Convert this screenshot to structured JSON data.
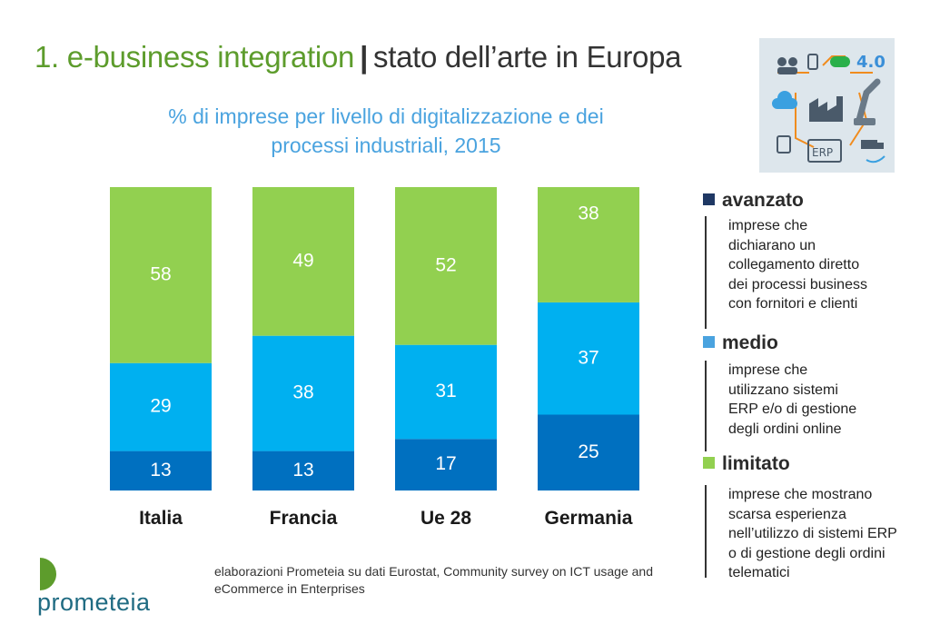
{
  "header": {
    "title_main": "1. e-business integration",
    "title_rest": "stato dell’arte in Europa",
    "subtitle": "% di imprese per livello di digitalizzazione e dei processi industriali, 2015"
  },
  "chart_data": {
    "type": "bar",
    "stacked": true,
    "categories": [
      "Italia",
      "Francia",
      "Ue 28",
      "Germania"
    ],
    "series": [
      {
        "name": "avanzato",
        "color": "#0070c0",
        "values": [
          13,
          13,
          17,
          25
        ]
      },
      {
        "name": "medio",
        "color": "#00b0f0",
        "values": [
          29,
          38,
          31,
          37
        ]
      },
      {
        "name": "limitato",
        "color": "#92d050",
        "values": [
          58,
          49,
          52,
          38
        ]
      }
    ],
    "ylim": [
      0,
      100
    ],
    "grid": false,
    "legend_position": "right",
    "data_labels": true
  },
  "legend": {
    "items": [
      {
        "label": "avanzato",
        "color": "#1f3864",
        "description": [
          "imprese che",
          "dichiarano un",
          "collegamento diretto",
          "dei processi business",
          "con fornitori e clienti"
        ]
      },
      {
        "label": "medio",
        "color": "#4aa3df",
        "description": [
          "imprese che",
          "utilizzano sistemi",
          "ERP e/o di gestione",
          "degli ordini online"
        ]
      },
      {
        "label": "limitato",
        "color": "#92d050",
        "description": [
          "imprese che mostrano",
          "scarsa esperienza",
          "nell’utilizzo di sistemi ERP",
          "o di gestione degli ordini",
          "telematici"
        ]
      }
    ]
  },
  "footer": {
    "source": "elaborazioni Prometeia su dati Eurostat, Community survey on ICT usage and eCommerce in Enterprises",
    "logo": "prometeia",
    "logo_color": "#1f6b82",
    "logo_mark_color": "#5d9c2c"
  },
  "illustration": {
    "icon": "industry-4-0-illustration",
    "label_4_0": "4.0",
    "label_erp": "ERP"
  }
}
